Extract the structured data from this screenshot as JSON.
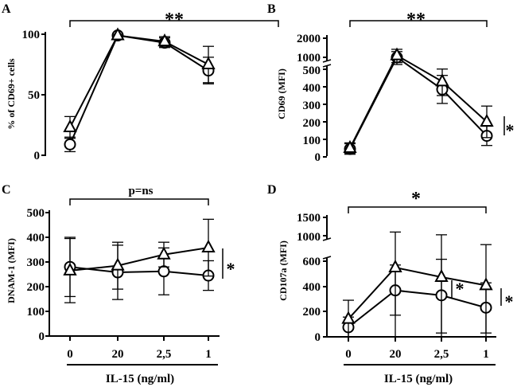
{
  "chart_data": [
    {
      "panel": "A",
      "type": "line",
      "ylabel": "% of CD69+ cells",
      "categories": [
        "0",
        "20",
        "2,5",
        "1"
      ],
      "yticks": [
        "0",
        "50",
        "100"
      ],
      "series": [
        {
          "name": "circle",
          "marker": "circle",
          "values": [
            9,
            99,
            93,
            70
          ],
          "errors": [
            6,
            1,
            4,
            11
          ]
        },
        {
          "name": "triangle",
          "marker": "triangle",
          "values": [
            23,
            99,
            94,
            75
          ],
          "errors": [
            9,
            1,
            4,
            15
          ]
        }
      ],
      "significance": "**"
    },
    {
      "panel": "B",
      "type": "line",
      "ylabel": "CD69 (MFI)",
      "categories": [
        "0",
        "20",
        "2,5",
        "1"
      ],
      "yticks": [
        "0",
        "100",
        "200",
        "300",
        "400",
        "500",
        "1000",
        "2000"
      ],
      "series": [
        {
          "name": "circle",
          "marker": "circle",
          "values": [
            45,
            1000,
            385,
            120
          ],
          "errors": [
            30,
            300,
            80,
            55
          ]
        },
        {
          "name": "triangle",
          "marker": "triangle",
          "values": [
            50,
            1100,
            430,
            200
          ],
          "errors": [
            30,
            320,
            80,
            90
          ]
        }
      ],
      "significance": "**",
      "side_significance": "*"
    },
    {
      "panel": "C",
      "type": "line",
      "ylabel": "DNAM-1 (MFI)",
      "categories": [
        "0",
        "20",
        "2,5",
        "1"
      ],
      "yticks": [
        "0",
        "100",
        "200",
        "300",
        "400",
        "500"
      ],
      "series": [
        {
          "name": "circle",
          "marker": "circle",
          "values": [
            280,
            258,
            262,
            245
          ],
          "errors": [
            120,
            110,
            95,
            60
          ]
        },
        {
          "name": "triangle",
          "marker": "triangle",
          "values": [
            265,
            285,
            330,
            358
          ],
          "errors": [
            130,
            95,
            50,
            115
          ]
        }
      ],
      "significance": "p=ns",
      "side_significance": "*"
    },
    {
      "panel": "D",
      "type": "line",
      "ylabel": "CD107a (MFI)",
      "categories": [
        "0",
        "20",
        "2,5",
        "1"
      ],
      "yticks": [
        "0",
        "200",
        "400",
        "600",
        "1000",
        "1500"
      ],
      "series": [
        {
          "name": "circle",
          "marker": "circle",
          "values": [
            75,
            370,
            330,
            230
          ],
          "errors": [
            80,
            200,
            300,
            200
          ]
        },
        {
          "name": "triangle",
          "marker": "triangle",
          "values": [
            140,
            550,
            475,
            410
          ],
          "errors": [
            150,
            550,
            550,
            450
          ]
        }
      ],
      "significance": "*",
      "side_significance": [
        "*",
        "*"
      ]
    }
  ],
  "x_axis_title": "IL-15 (ng/ml)"
}
